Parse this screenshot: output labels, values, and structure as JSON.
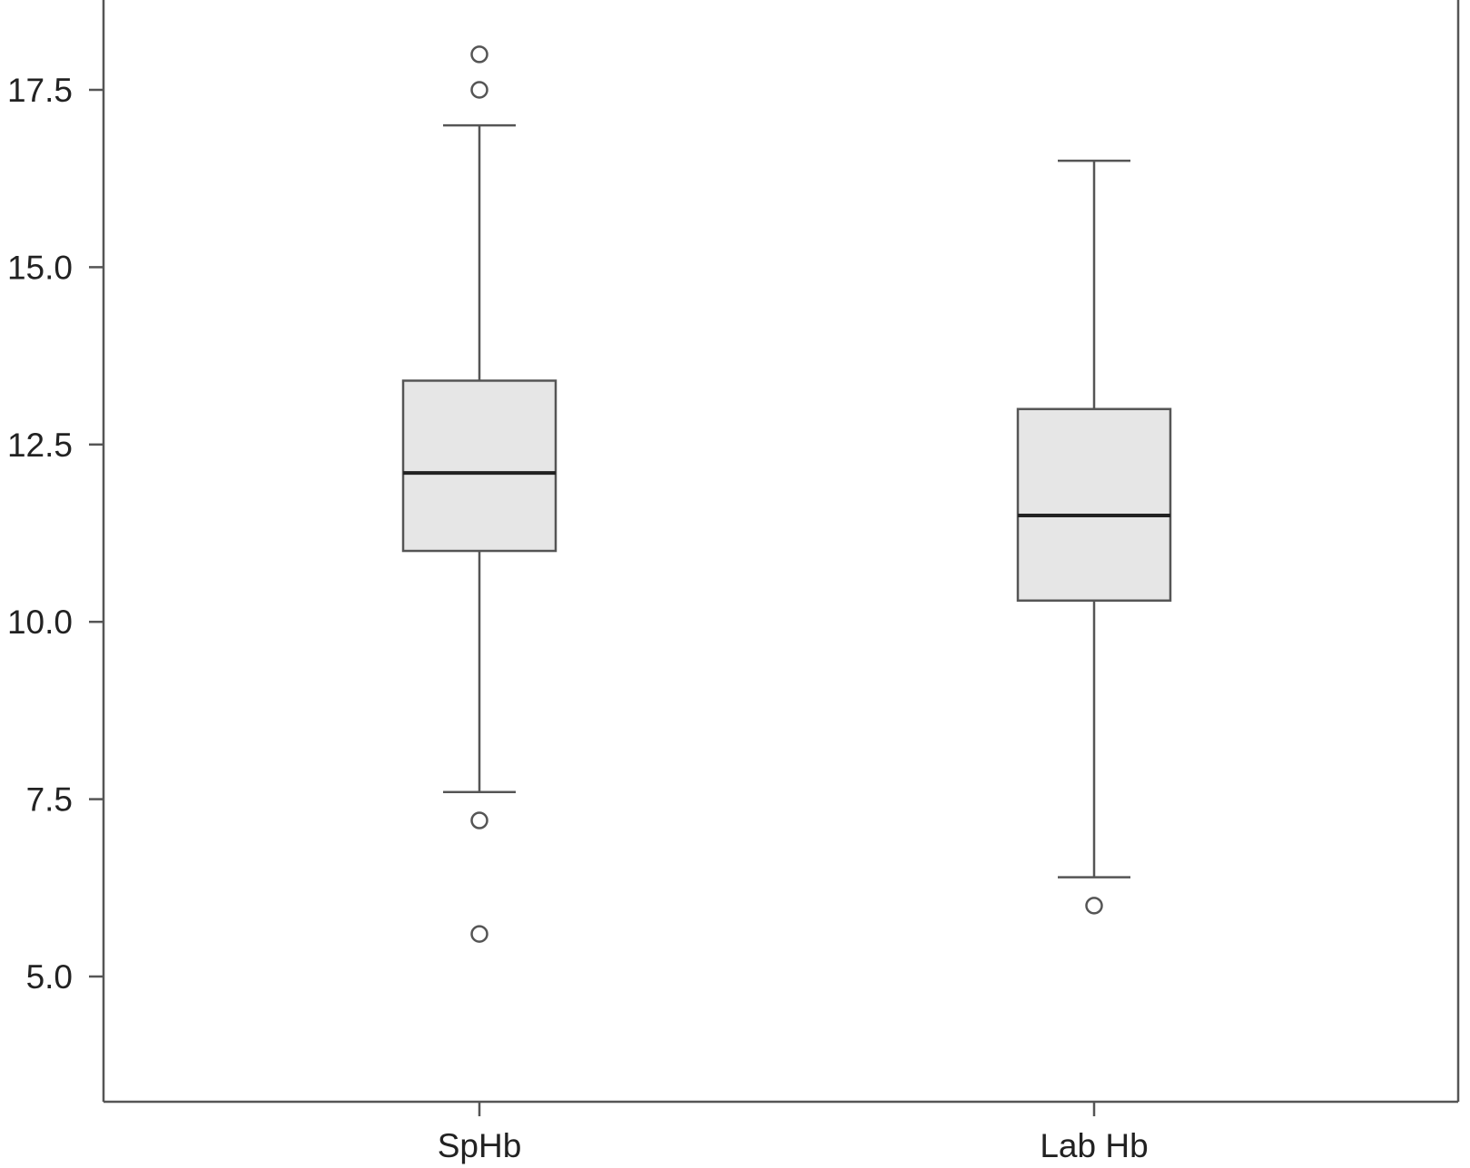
{
  "chart_data": {
    "type": "boxplot",
    "title": "",
    "xlabel": "",
    "ylabel": "",
    "ylim": [
      3.2,
      18.7
    ],
    "yticks": [
      "5.0",
      "7.5",
      "10.0",
      "12.5",
      "15.0",
      "17.5"
    ],
    "ytick_values": [
      5.0,
      7.5,
      10.0,
      12.5,
      15.0,
      17.5
    ],
    "grid": false,
    "categories": [
      "SpHb",
      "Lab Hb"
    ],
    "boxes": [
      {
        "category": "SpHb",
        "whisker_low": 7.6,
        "q1": 11.0,
        "median": 12.1,
        "q3": 13.4,
        "whisker_high": 17.0,
        "outliers": [
          18.0,
          17.5,
          7.2,
          5.6
        ]
      },
      {
        "category": "Lab Hb",
        "whisker_low": 6.4,
        "q1": 10.3,
        "median": 11.5,
        "q3": 13.0,
        "whisker_high": 16.5,
        "outliers": [
          6.0
        ]
      }
    ],
    "colors": {
      "box_fill": "#e6e6e6",
      "line": "#555555",
      "median": "#222222",
      "axis": "#555555"
    }
  }
}
